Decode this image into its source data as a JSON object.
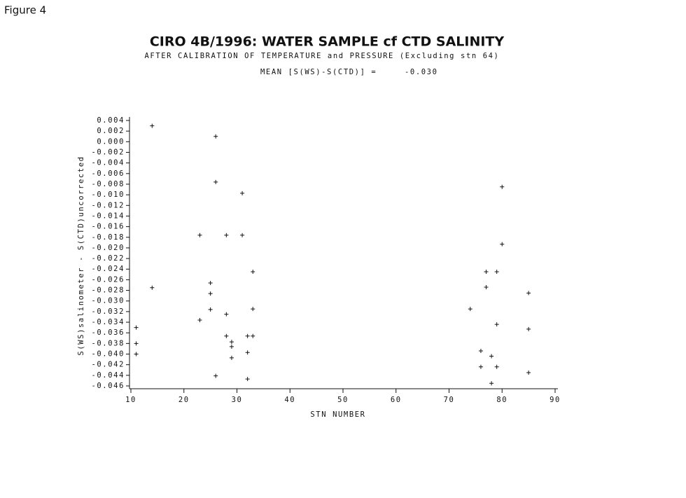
{
  "figure_label": "Figure 4",
  "chart_data": {
    "type": "scatter",
    "title": "CIRO 4B/1996:  WATER SAMPLE cf CTD SALINITY",
    "subtitle": "AFTER CALIBRATION OF TEMPERATURE and PRESSURE (Excluding stn 64)",
    "annotation_label": "MEAN [S(WS)-S(CTD)] =",
    "annotation_value": "-0.030",
    "x_label": "STN NUMBER",
    "y_label": "S(WS)salinometer - S(CTD)uncorrected",
    "xlim": [
      10,
      90
    ],
    "xticks": [
      10,
      20,
      30,
      40,
      50,
      60,
      70,
      80,
      90
    ],
    "ylim": [
      -0.046,
      0.004
    ],
    "yticks": [
      0.004,
      0.002,
      {
        "value": 0,
        "label": "0.000"
      },
      -0.002,
      -0.004,
      -0.006,
      -0.008,
      {
        "value": -0.01,
        "label": "-0.010"
      },
      -0.012,
      -0.014,
      -0.016,
      -0.018,
      {
        "value": -0.02,
        "label": "-0.020"
      },
      -0.022,
      -0.024,
      -0.026,
      -0.028,
      {
        "value": -0.03,
        "label": "-0.030"
      },
      -0.032,
      -0.034,
      -0.036,
      -0.038,
      {
        "value": -0.04,
        "label": "-0.040"
      },
      -0.042,
      -0.044,
      -0.046
    ],
    "color": "#111111",
    "x": [
      14,
      11,
      11,
      11,
      14,
      26,
      26,
      31,
      23,
      28,
      31,
      33,
      25,
      25,
      25,
      23,
      28,
      33,
      28,
      29,
      29,
      32,
      33,
      32,
      29,
      26,
      32,
      80,
      80,
      77,
      79,
      77,
      85,
      74,
      79,
      85,
      76,
      78,
      76,
      79,
      85,
      78
    ],
    "values": [
      0.003,
      -0.035,
      -0.038,
      -0.04,
      -0.0275,
      0.001,
      -0.0076,
      -0.0097,
      -0.0176,
      -0.0176,
      -0.0176,
      -0.0245,
      -0.0266,
      -0.0286,
      -0.0316,
      -0.0336,
      -0.0325,
      -0.0315,
      -0.0366,
      -0.0377,
      -0.0386,
      -0.0366,
      -0.0366,
      -0.0397,
      -0.0407,
      -0.0441,
      -0.0447,
      -0.0085,
      -0.0193,
      -0.0245,
      -0.0245,
      -0.0274,
      -0.0285,
      -0.0315,
      -0.0344,
      -0.0353,
      -0.0394,
      -0.0404,
      -0.0424,
      -0.0424,
      -0.0435,
      -0.0455
    ]
  }
}
